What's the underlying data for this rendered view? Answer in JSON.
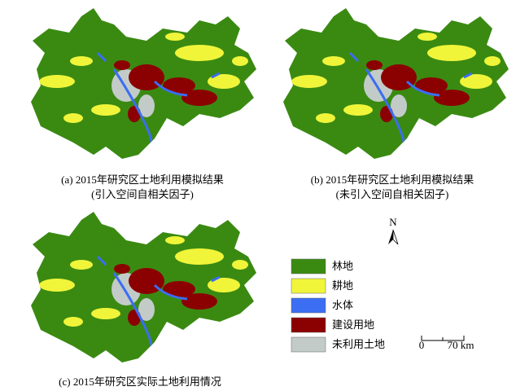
{
  "maps": [
    {
      "caption": [
        "(a) 2015年研究区土地利用模拟结果",
        "(引入空间自相关因子)"
      ]
    },
    {
      "caption": [
        "(b) 2015年研究区土地利用模拟结果",
        "(未引入空间自相关因子)"
      ]
    },
    {
      "caption": [
        "(c) 2015年研究区实际土地利用情况"
      ]
    }
  ],
  "legend": [
    {
      "label": "林地",
      "color": "#3a8a12"
    },
    {
      "label": "耕地",
      "color": "#f0f53a"
    },
    {
      "label": "水体",
      "color": "#3b6ef2"
    },
    {
      "label": "建设用地",
      "color": "#8b0000"
    },
    {
      "label": "未利用土地",
      "color": "#c3cbc9"
    }
  ],
  "north": "N",
  "scale_bar": {
    "labels": [
      "0",
      "70 km"
    ]
  }
}
